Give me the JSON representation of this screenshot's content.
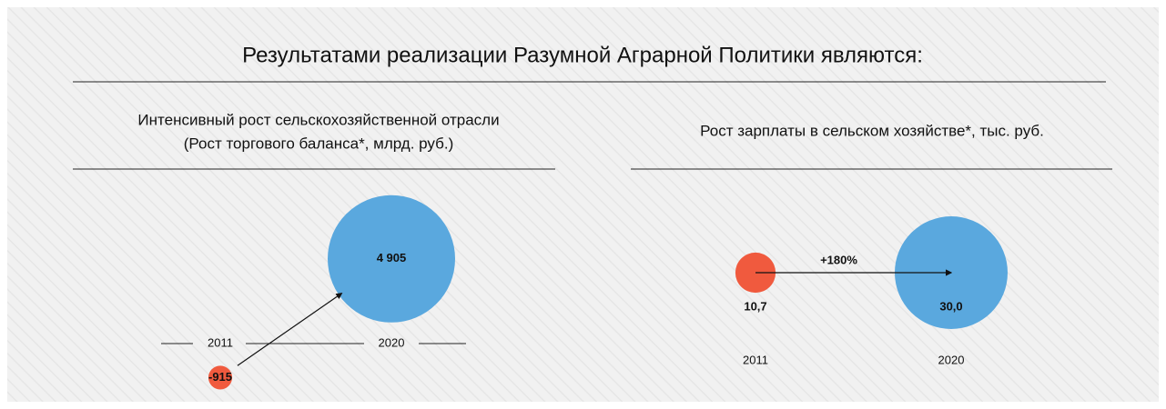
{
  "title": "Результатами  реализации Разумной Аграрной Политики являются:",
  "chart_data": [
    {
      "type": "bubble",
      "title": "Интенсивный рост сельскохозяйственной отрасли",
      "subtitle": "(Рост торгового баланса*, млрд. руб.)",
      "categories": [
        "2011",
        "2020"
      ],
      "values": [
        -915,
        4905
      ],
      "value_labels": [
        "-915",
        "4 905"
      ],
      "colors": [
        "#f05a3e",
        "#5aa8de"
      ]
    },
    {
      "type": "bubble",
      "title": "Рост зарплаты в сельском хозяйстве*, тыс. руб.",
      "categories": [
        "2011",
        "2020"
      ],
      "values": [
        10.7,
        30.0
      ],
      "value_labels": [
        "10,7",
        "30,0"
      ],
      "colors": [
        "#f05a3e",
        "#5aa8de"
      ],
      "annotation": "+180%"
    }
  ]
}
